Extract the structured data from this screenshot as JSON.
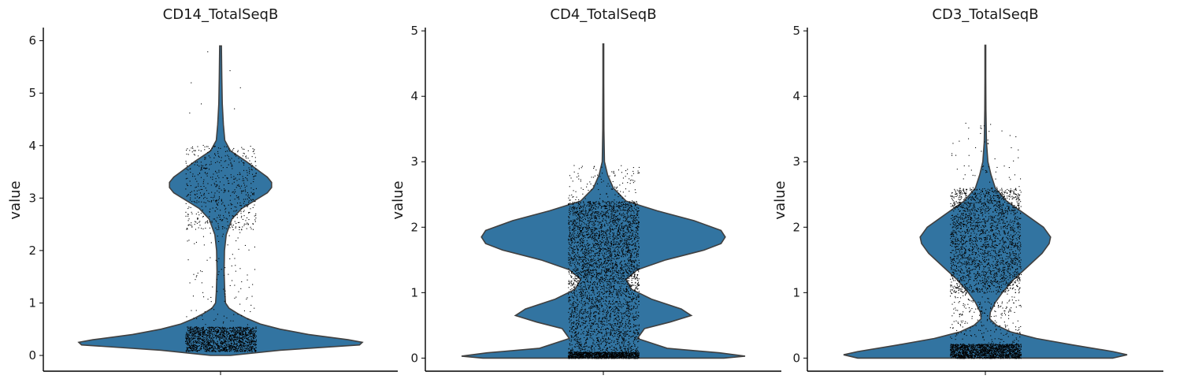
{
  "chart_data": [
    {
      "type": "violin",
      "title": "CD14_TotalSeqB",
      "ylabel": "value",
      "xlabel": "",
      "ylim": [
        -0.3,
        6.25
      ],
      "yticks": [
        0,
        1,
        2,
        3,
        4,
        5,
        6
      ],
      "color": "#3274a1",
      "grid": false,
      "density": [
        [
          0.0,
          0.07
        ],
        [
          0.1,
          0.42
        ],
        [
          0.2,
          0.98
        ],
        [
          0.25,
          1.0
        ],
        [
          0.3,
          0.9
        ],
        [
          0.4,
          0.62
        ],
        [
          0.5,
          0.42
        ],
        [
          0.6,
          0.28
        ],
        [
          0.7,
          0.19
        ],
        [
          0.8,
          0.12
        ],
        [
          0.9,
          0.06
        ],
        [
          1.0,
          0.035
        ],
        [
          1.2,
          0.03
        ],
        [
          1.6,
          0.025
        ],
        [
          2.0,
          0.028
        ],
        [
          2.3,
          0.04
        ],
        [
          2.6,
          0.08
        ],
        [
          2.8,
          0.15
        ],
        [
          3.0,
          0.27
        ],
        [
          3.1,
          0.33
        ],
        [
          3.2,
          0.36
        ],
        [
          3.3,
          0.36
        ],
        [
          3.4,
          0.33
        ],
        [
          3.5,
          0.28
        ],
        [
          3.7,
          0.18
        ],
        [
          3.9,
          0.07
        ],
        [
          4.1,
          0.03
        ],
        [
          4.4,
          0.02
        ],
        [
          4.8,
          0.012
        ],
        [
          5.3,
          0.009
        ],
        [
          5.9,
          0.006
        ]
      ],
      "points": [
        {
          "y": [
            0.08,
            0.55
          ],
          "n": 1500
        },
        {
          "y": [
            0.55,
            2.4
          ],
          "n": 110
        },
        {
          "y": [
            2.4,
            4.0
          ],
          "n": 600
        },
        {
          "y": [
            4.0,
            5.9
          ],
          "n": 8
        }
      ]
    },
    {
      "type": "violin",
      "title": "CD4_TotalSeqB",
      "ylabel": "value",
      "xlabel": "",
      "ylim": [
        -0.2,
        5.05
      ],
      "yticks": [
        0,
        1,
        2,
        3,
        4,
        5
      ],
      "color": "#3274a1",
      "grid": false,
      "density": [
        [
          0.0,
          0.85
        ],
        [
          0.03,
          1.0
        ],
        [
          0.08,
          0.82
        ],
        [
          0.15,
          0.45
        ],
        [
          0.3,
          0.24
        ],
        [
          0.45,
          0.29
        ],
        [
          0.55,
          0.47
        ],
        [
          0.65,
          0.62
        ],
        [
          0.75,
          0.55
        ],
        [
          0.9,
          0.34
        ],
        [
          1.05,
          0.2
        ],
        [
          1.2,
          0.16
        ],
        [
          1.35,
          0.24
        ],
        [
          1.5,
          0.44
        ],
        [
          1.65,
          0.71
        ],
        [
          1.75,
          0.83
        ],
        [
          1.85,
          0.86
        ],
        [
          1.95,
          0.83
        ],
        [
          2.1,
          0.64
        ],
        [
          2.25,
          0.38
        ],
        [
          2.4,
          0.16
        ],
        [
          2.6,
          0.07
        ],
        [
          2.8,
          0.03
        ],
        [
          3.0,
          0.008
        ],
        [
          3.5,
          0.004
        ],
        [
          4.2,
          0.003
        ],
        [
          4.8,
          0.003
        ]
      ],
      "points": [
        {
          "y": [
            0.0,
            0.1
          ],
          "n": 1100
        },
        {
          "y": [
            0.1,
            1.2
          ],
          "n": 1500
        },
        {
          "y": [
            1.2,
            2.4
          ],
          "n": 2200
        },
        {
          "y": [
            2.4,
            2.95
          ],
          "n": 120
        }
      ]
    },
    {
      "type": "violin",
      "title": "CD3_TotalSeqB",
      "ylabel": "value",
      "xlabel": "",
      "ylim": [
        -0.2,
        5.05
      ],
      "yticks": [
        0,
        1,
        2,
        3,
        4,
        5
      ],
      "color": "#3274a1",
      "grid": false,
      "density": [
        [
          0.0,
          0.9
        ],
        [
          0.05,
          1.0
        ],
        [
          0.1,
          0.9
        ],
        [
          0.2,
          0.62
        ],
        [
          0.3,
          0.36
        ],
        [
          0.4,
          0.18
        ],
        [
          0.5,
          0.08
        ],
        [
          0.6,
          0.03
        ],
        [
          0.7,
          0.035
        ],
        [
          0.85,
          0.07
        ],
        [
          1.0,
          0.12
        ],
        [
          1.2,
          0.2
        ],
        [
          1.4,
          0.3
        ],
        [
          1.6,
          0.4
        ],
        [
          1.75,
          0.45
        ],
        [
          1.85,
          0.46
        ],
        [
          2.0,
          0.41
        ],
        [
          2.2,
          0.28
        ],
        [
          2.4,
          0.15
        ],
        [
          2.6,
          0.07
        ],
        [
          2.8,
          0.04
        ],
        [
          3.0,
          0.018
        ],
        [
          3.3,
          0.008
        ],
        [
          3.8,
          0.004
        ],
        [
          4.3,
          0.003
        ],
        [
          4.78,
          0.003
        ]
      ],
      "points": [
        {
          "y": [
            0.0,
            0.22
          ],
          "n": 1600
        },
        {
          "y": [
            0.22,
            1.0
          ],
          "n": 250
        },
        {
          "y": [
            1.0,
            2.6
          ],
          "n": 2200
        },
        {
          "y": [
            2.6,
            3.6
          ],
          "n": 60
        }
      ]
    }
  ]
}
